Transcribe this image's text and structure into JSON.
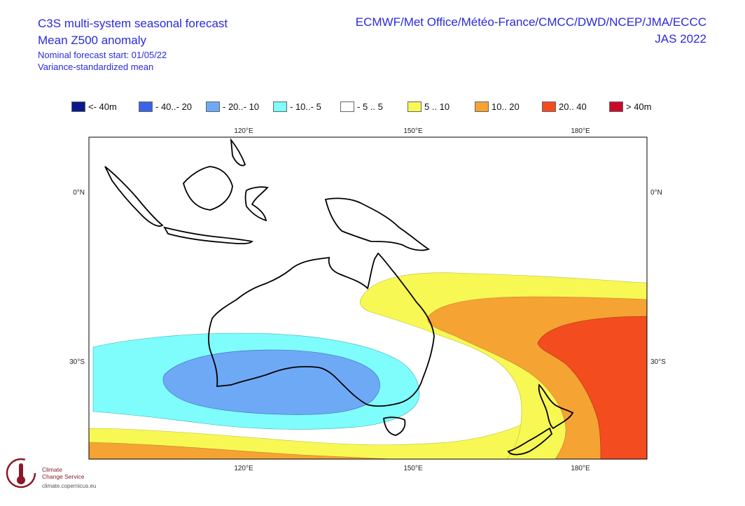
{
  "title": {
    "line1": "C3S multi-system seasonal forecast",
    "line2": "Mean Z500 anomaly",
    "line3": "Nominal forecast start: 01/05/22",
    "line4": "Variance-standardized mean",
    "systems": "ECMWF/Met Office/Météo-France/CMCC/DWD/NCEP/JMA/ECCC",
    "season": "JAS 2022"
  },
  "legend": [
    {
      "label": "<- 40m",
      "color": "#0a1a8c"
    },
    {
      "label": "- 40..- 20",
      "color": "#3a64e6"
    },
    {
      "label": "- 20..- 10",
      "color": "#6ea9f5"
    },
    {
      "label": "- 10..- 5",
      "color": "#7ffcfc"
    },
    {
      "label": "- 5 .. 5",
      "color": "#ffffff"
    },
    {
      "label": "5 .. 10",
      "color": "#f8f855"
    },
    {
      "label": "10.. 20",
      "color": "#f5a333"
    },
    {
      "label": "20.. 40",
      "color": "#f34c1f"
    },
    {
      "label": "> 40m",
      "color": "#c80a2a"
    }
  ],
  "axes": {
    "lon_labels": [
      "120°E",
      "150°E",
      "180°E"
    ],
    "lat_labels": [
      "0°N",
      "30°S"
    ]
  },
  "logo": {
    "name_line1": "Climate",
    "name_line2": "Change Service",
    "url": "climate.copernicus.eu"
  }
}
